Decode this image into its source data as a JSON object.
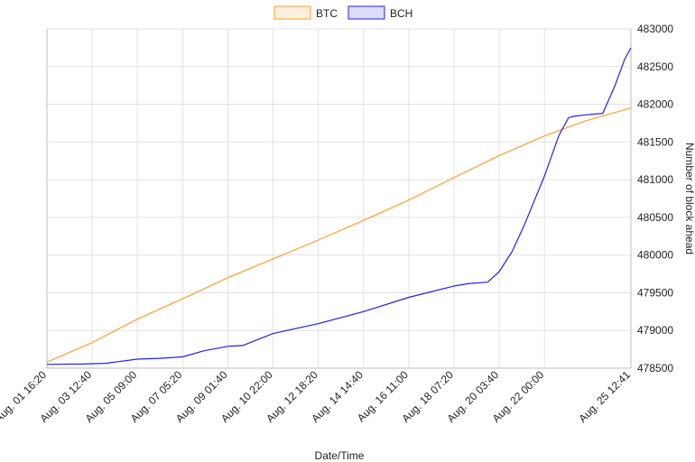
{
  "chart_data": {
    "type": "line",
    "xlabel": "Date/Time",
    "ylabel": "Number of block ahead",
    "ylim": [
      478500,
      483000
    ],
    "y_ticks": [
      478500,
      479000,
      479500,
      480000,
      480500,
      481000,
      481500,
      482000,
      482500,
      483000
    ],
    "y_axis_position": "right",
    "legend_position": "top",
    "grid": true,
    "x_ticks": [
      {
        "label": "Aug. 01 16:20",
        "day": 0
      },
      {
        "label": "Aug. 03 12:40",
        "day": 1.847
      },
      {
        "label": "Aug. 05 09:00",
        "day": 3.694
      },
      {
        "label": "Aug. 07 05:20",
        "day": 5.542
      },
      {
        "label": "Aug. 09 01:40",
        "day": 7.389
      },
      {
        "label": "Aug. 10 22:00",
        "day": 9.236
      },
      {
        "label": "Aug. 12 18:20",
        "day": 11.083
      },
      {
        "label": "Aug. 14 14:40",
        "day": 12.931
      },
      {
        "label": "Aug. 16 11:00",
        "day": 14.778
      },
      {
        "label": "Aug. 18 07:20",
        "day": 16.625
      },
      {
        "label": "Aug. 20 03:40",
        "day": 18.472
      },
      {
        "label": "Aug. 22 00:00",
        "day": 20.319
      },
      {
        "label": "Aug. 25 12:41",
        "day": 23.849
      }
    ],
    "series": [
      {
        "name": "BTC",
        "color": "#ff9f2e",
        "fill": "#fdf0dc",
        "x": [
          0,
          1.85,
          3.69,
          5.54,
          7.39,
          9.24,
          11.08,
          12.93,
          14.78,
          16.63,
          18.47,
          20.32,
          22.0,
          23.85
        ],
        "y": [
          478580,
          478840,
          479150,
          479420,
          479700,
          479950,
          480200,
          480460,
          480730,
          481030,
          481320,
          481580,
          481780,
          481950
        ]
      },
      {
        "name": "BCH",
        "color": "#2020ee",
        "fill": "#dcdcf8",
        "x": [
          0,
          1.5,
          2.4,
          3.69,
          4.6,
          5.54,
          6.4,
          7.39,
          8.0,
          9.24,
          11.08,
          12.93,
          14.78,
          16.63,
          17.2,
          18.0,
          18.47,
          19.0,
          19.5,
          20.32,
          20.9,
          21.3,
          21.5,
          22.0,
          22.7,
          23.2,
          23.6,
          23.85
        ],
        "y": [
          478550,
          478555,
          478565,
          478620,
          478630,
          478650,
          478730,
          478790,
          478800,
          478960,
          479090,
          479250,
          479440,
          479590,
          479620,
          479640,
          479780,
          480050,
          480400,
          481050,
          481580,
          481820,
          481840,
          481860,
          481880,
          482250,
          482600,
          482750
        ]
      }
    ]
  }
}
